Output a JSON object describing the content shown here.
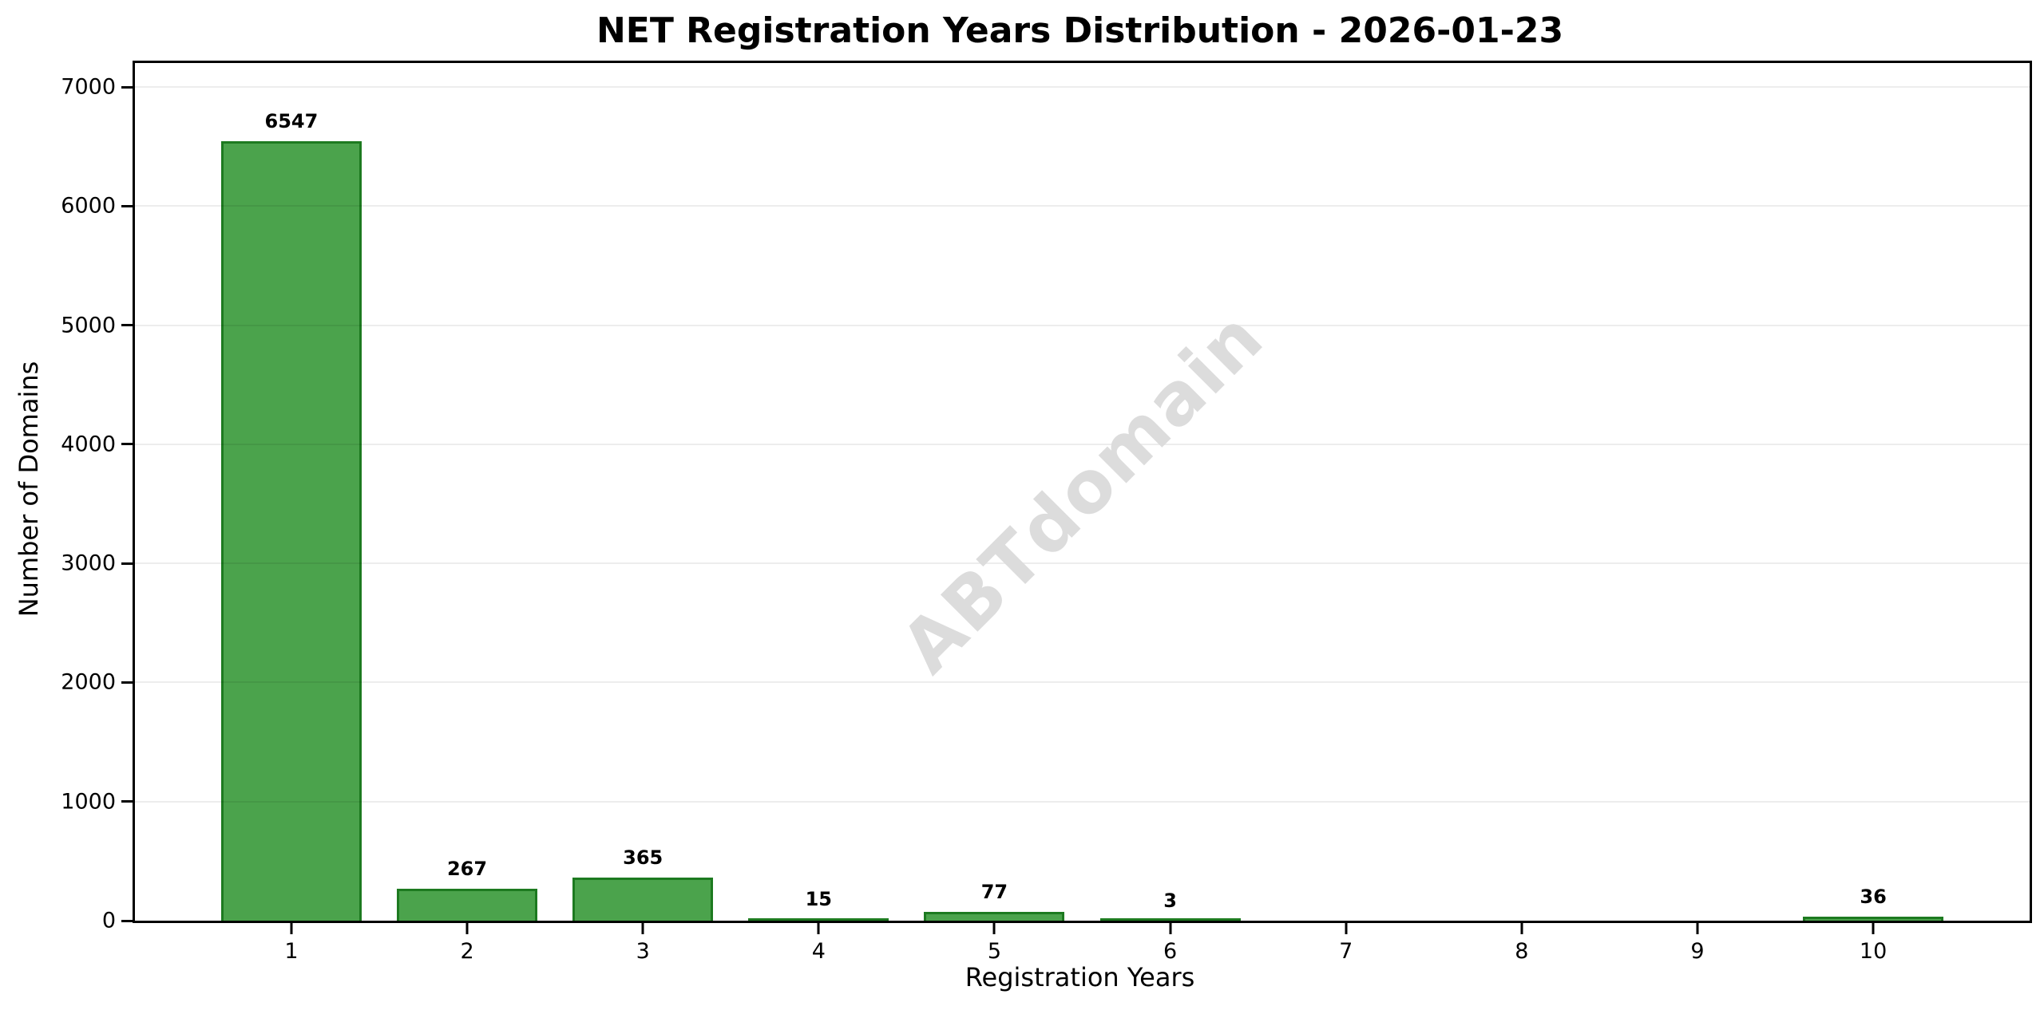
{
  "chart_data": {
    "type": "bar",
    "title": "NET Registration Years Distribution - 2026-01-23",
    "xlabel": "Registration Years",
    "ylabel": "Number of Domains",
    "categories": [
      "1",
      "2",
      "3",
      "4",
      "5",
      "6",
      "7",
      "8",
      "9",
      "10"
    ],
    "values": [
      6547,
      267,
      365,
      15,
      77,
      3,
      0,
      0,
      0,
      36
    ],
    "bar_labels": [
      "6547",
      "267",
      "365",
      "15",
      "77",
      "3",
      "",
      "",
      "",
      "36"
    ],
    "yticks": [
      0,
      1000,
      2000,
      3000,
      4000,
      5000,
      6000,
      7000
    ],
    "ytick_labels": [
      "0",
      "1000",
      "2000",
      "3000",
      "4000",
      "5000",
      "6000",
      "7000"
    ],
    "ylim": [
      0,
      7202
    ],
    "xlim": [
      0.11,
      10.89
    ],
    "bar_width": 0.8,
    "grid": "horizontal",
    "legend": "none",
    "watermark": "ABTdomain",
    "colors": {
      "bar_fill": "#4ba34c",
      "bar_edge": "#1d7a20",
      "grid": "#e8e8e8",
      "watermark": "#dcdcdc",
      "text": "#000000",
      "background": "#ffffff"
    }
  }
}
